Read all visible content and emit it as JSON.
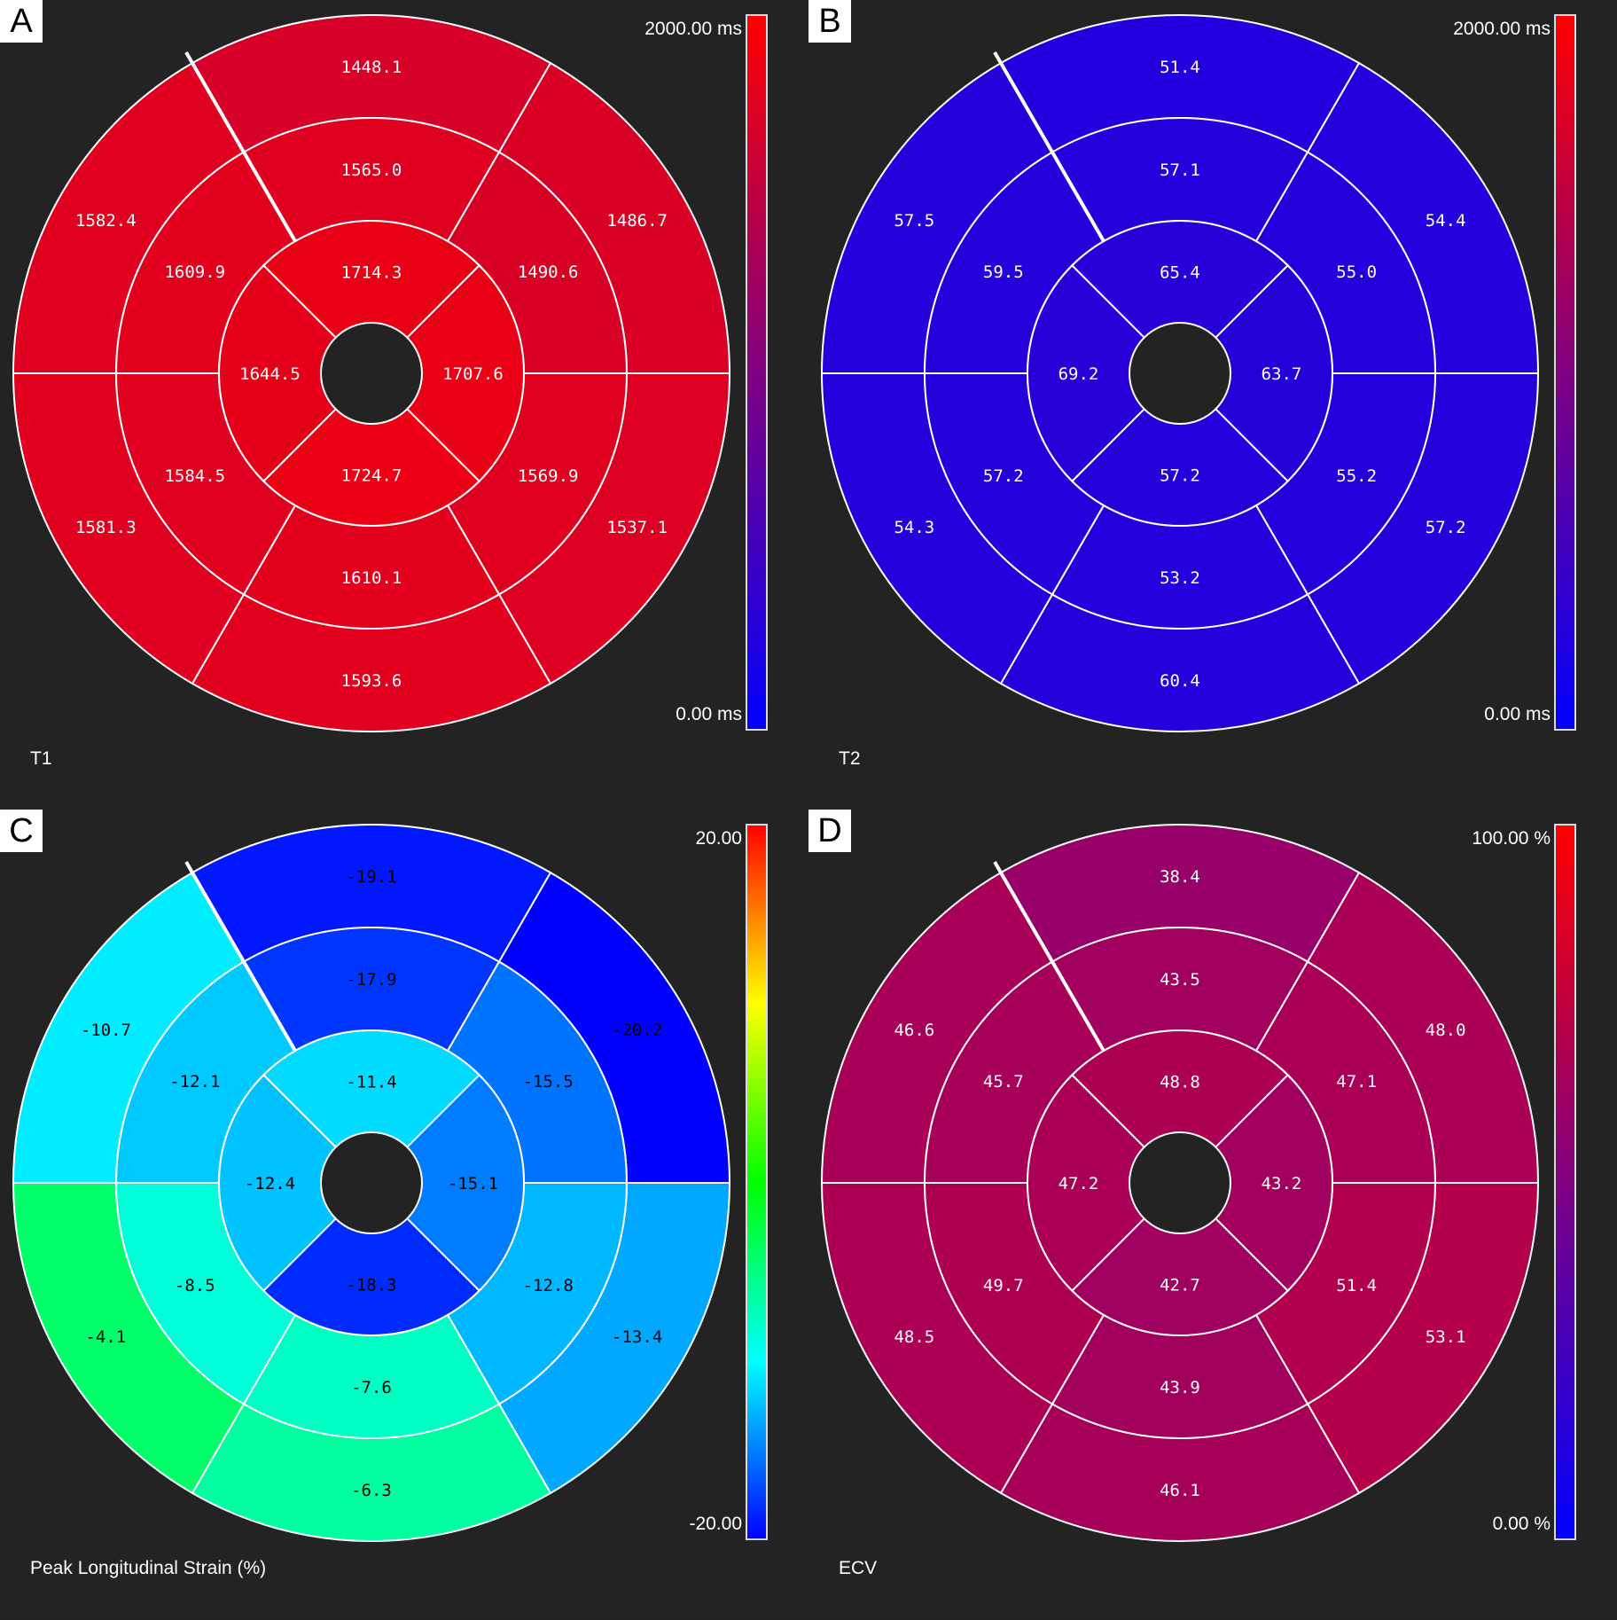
{
  "colors": {
    "background": "#232323",
    "separator": "#ffffff",
    "scale_red_blue": [
      "#0000ff",
      "#ff0000"
    ],
    "scale_rainbow": [
      "#0000ff",
      "#00ffff",
      "#00ff00",
      "#ffff00",
      "#ff0000"
    ]
  },
  "chart_data": [
    {
      "type": "bullseye",
      "panel": "A",
      "title": "T1",
      "scale_max": "2000.00 ms",
      "scale_min": "0.00 ms",
      "colormap": "blue-red",
      "range": [
        0,
        2000
      ],
      "text_color": "#ffffff",
      "segments": [
        1448.1,
        1486.7,
        1537.1,
        1593.6,
        1581.3,
        1582.4,
        1565.0,
        1490.6,
        1569.9,
        1610.1,
        1584.5,
        1609.9,
        1714.3,
        1707.6,
        1724.7,
        1644.5
      ],
      "labels": [
        "1448.1",
        "1486.7",
        "1537.1",
        "1593.6",
        "1581.3",
        "1582.4",
        "1565.0",
        "1490.6",
        "1569.9",
        "1610.1",
        "1584.5",
        "1609.9",
        "1714.3",
        "1707.6",
        "1724.7",
        "1644.5"
      ]
    },
    {
      "type": "bullseye",
      "panel": "B",
      "title": "T2",
      "scale_max": "2000.00 ms",
      "scale_min": "0.00 ms",
      "colormap": "blue-red",
      "range": [
        0,
        2000
      ],
      "text_color": "#ffffff",
      "segments": [
        51.4,
        54.4,
        57.2,
        60.4,
        54.3,
        57.5,
        57.1,
        55.0,
        55.2,
        53.2,
        57.2,
        59.5,
        65.4,
        63.7,
        57.2,
        69.2
      ],
      "labels": [
        "51.4",
        "54.4",
        "57.2",
        "60.4",
        "54.3",
        "57.5",
        "57.1",
        "55.0",
        "55.2",
        "53.2",
        "57.2",
        "59.5",
        "65.4",
        "63.7",
        "57.2",
        "69.2"
      ]
    },
    {
      "type": "bullseye",
      "panel": "C",
      "title": "Peak Longitudinal Strain (%)",
      "scale_max": "20.00",
      "scale_min": "-20.00",
      "colormap": "rainbow",
      "range": [
        -20,
        20
      ],
      "text_color": "#000000",
      "segments": [
        -19.1,
        -20.2,
        -13.4,
        -6.3,
        -4.1,
        -10.7,
        -17.9,
        -15.5,
        -12.8,
        -7.6,
        -8.5,
        -12.1,
        -11.4,
        -15.1,
        -18.3,
        -12.4
      ],
      "labels": [
        "-19.1",
        "-20.2",
        "-13.4",
        "-6.3",
        "-4.1",
        "-10.7",
        "-17.9",
        "-15.5",
        "-12.8",
        "-7.6",
        "-8.5",
        "-12.1",
        "-11.4",
        "-15.1",
        "-18.3",
        "-12.4"
      ]
    },
    {
      "type": "bullseye",
      "panel": "D",
      "title": "ECV",
      "scale_max": "100.00 %",
      "scale_min": "0.00 %",
      "colormap": "blue-red",
      "range": [
        0,
        100
      ],
      "text_color": "#ffffff",
      "segments": [
        38.4,
        48.0,
        53.1,
        46.1,
        48.5,
        46.6,
        43.5,
        47.1,
        51.4,
        43.9,
        49.7,
        45.7,
        48.8,
        43.2,
        42.7,
        47.2
      ],
      "labels": [
        "38.4",
        "48.0",
        "53.1",
        "46.1",
        "48.5",
        "46.6",
        "43.5",
        "47.1",
        "51.4",
        "43.9",
        "49.7",
        "45.7",
        "48.8",
        "43.2",
        "42.7",
        "47.2"
      ]
    }
  ]
}
